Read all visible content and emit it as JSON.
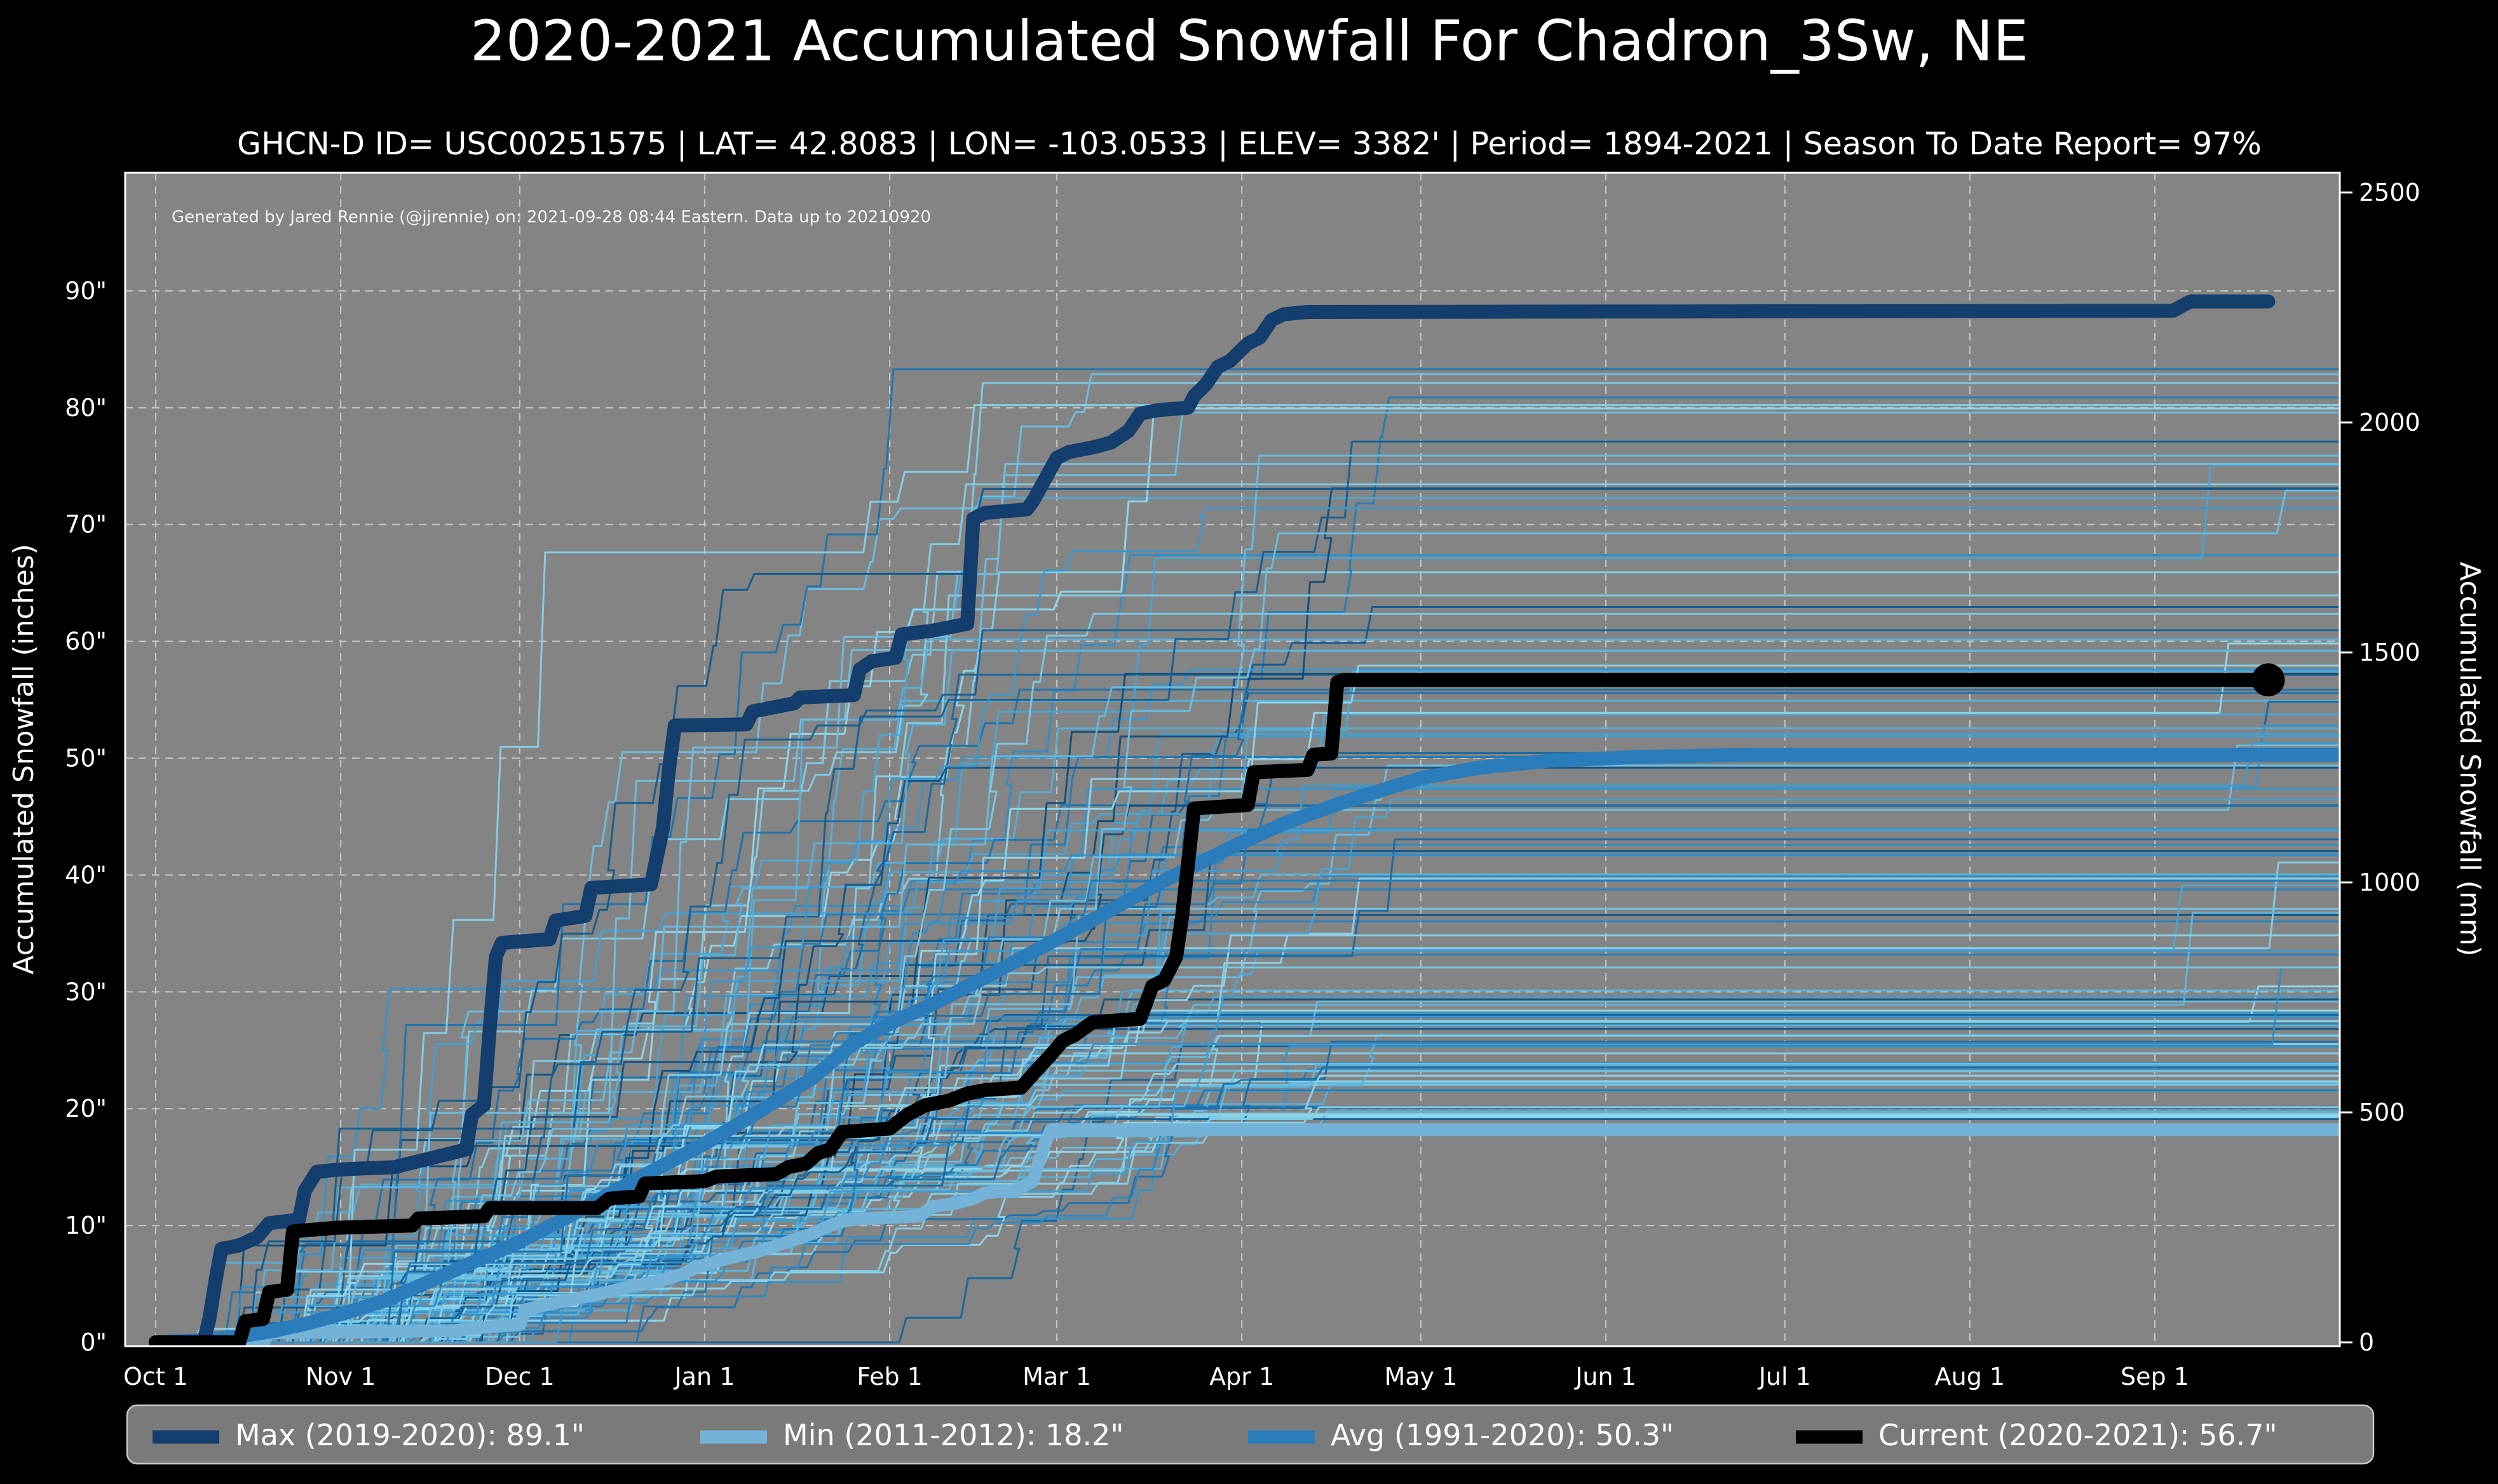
{
  "chart_data": {
    "type": "line",
    "title": "2020-2021 Accumulated Snowfall For Chadron_3Sw, NE",
    "subtitle": "GHCN-D ID= USC00251575 | LAT= 42.8083 | LON= -103.0533 | ELEV= 3382' | Period= 1894-2021 | Season To Date Report= 97%",
    "annotation": "Generated by Jared Rennie (@jjrennie) on: 2021-09-28 08:44 Eastern. Data up to 20210920",
    "plot_bg": "#848484",
    "fig_bg": "#000000",
    "text_color": "#ffffff",
    "grid": {
      "on": true,
      "color": "#cdcdcd",
      "dash": [
        12,
        9
      ],
      "width": 2.2,
      "opacity": 0.85
    },
    "spine_color": "#ffffff",
    "x_axis": {
      "ticks": [
        {
          "label": "Oct 1",
          "day": 0
        },
        {
          "label": "Nov 1",
          "day": 31
        },
        {
          "label": "Dec 1",
          "day": 61
        },
        {
          "label": "Jan 1",
          "day": 92
        },
        {
          "label": "Feb 1",
          "day": 123
        },
        {
          "label": "Mar 1",
          "day": 151
        },
        {
          "label": "Apr 1",
          "day": 182
        },
        {
          "label": "May 1",
          "day": 212
        },
        {
          "label": "Jun 1",
          "day": 243
        },
        {
          "label": "Jul 1",
          "day": 273
        },
        {
          "label": "Aug 1",
          "day": 304
        },
        {
          "label": "Sep 1",
          "day": 335
        }
      ],
      "lim_days": [
        -5.1,
        366
      ]
    },
    "y_axis_inches": {
      "label": "Accumulated Snowfall (inches)",
      "tick_values": [
        0,
        10,
        20,
        30,
        40,
        50,
        60,
        70,
        80,
        90
      ],
      "tick_suffix": "\"",
      "lim": [
        -0.33,
        100.1
      ]
    },
    "y_axis_mm": {
      "label": "Accumulated Snowfall (mm)",
      "tick_values": [
        0,
        500,
        1000,
        1500,
        2000,
        2500
      ],
      "mm_per_inch": 25.4
    },
    "legend": {
      "bg": "#7a7a7a",
      "border": "#c8c8c8",
      "entries": [
        {
          "key": "max",
          "label": "Max (2019-2020):  89.1\"",
          "color": "#143e6d"
        },
        {
          "key": "min",
          "label": "Min (2011-2012):  18.2\"",
          "color": "#74b2d8"
        },
        {
          "key": "avg",
          "label": "Avg (1991-2020):  50.3\"",
          "color": "#2a7cbb"
        },
        {
          "key": "current",
          "label": "Current (2020-2021):  56.7\"",
          "color": "#000000"
        }
      ]
    },
    "series": [
      {
        "key": "min",
        "name": "Min (2011-2012)",
        "final_label": "18.2\"",
        "color": "#74b2d8",
        "width": 20,
        "points": [
          [
            0,
            0
          ],
          [
            18,
            0
          ],
          [
            19,
            0.8
          ],
          [
            50,
            1
          ],
          [
            55,
            1.3
          ],
          [
            61,
            1.5
          ],
          [
            62,
            2.8
          ],
          [
            67,
            3.4
          ],
          [
            74,
            4.1
          ],
          [
            79,
            4.7
          ],
          [
            84,
            5.2
          ],
          [
            88,
            5.8
          ],
          [
            91,
            6.5
          ],
          [
            96,
            7.2
          ],
          [
            101,
            7.8
          ],
          [
            106,
            8.6
          ],
          [
            110,
            9.3
          ],
          [
            113,
            10
          ],
          [
            116,
            10.5
          ],
          [
            128,
            10.8
          ],
          [
            130,
            11.6
          ],
          [
            134,
            11.9
          ],
          [
            137,
            12.3
          ],
          [
            139,
            12.8
          ],
          [
            144,
            13
          ],
          [
            147,
            13.8
          ],
          [
            148,
            15.5
          ],
          [
            149,
            17
          ],
          [
            150,
            18.2
          ],
          [
            366,
            18.2
          ]
        ]
      },
      {
        "key": "avg",
        "name": "Avg (1991-2020)",
        "final_label": "50.3\"",
        "color": "#2a7cbb",
        "width": 22,
        "points": [
          [
            0,
            0
          ],
          [
            8,
            0.2
          ],
          [
            14,
            0.5
          ],
          [
            20,
            1
          ],
          [
            26,
            1.7
          ],
          [
            31,
            2.4
          ],
          [
            38,
            3.5
          ],
          [
            45,
            5
          ],
          [
            52,
            6.6
          ],
          [
            61,
            8.6
          ],
          [
            70,
            11
          ],
          [
            80,
            13.8
          ],
          [
            92,
            17
          ],
          [
            100,
            19.4
          ],
          [
            110,
            22.6
          ],
          [
            117,
            25.6
          ],
          [
            123,
            27.3
          ],
          [
            130,
            28.9
          ],
          [
            140,
            31.5
          ],
          [
            151,
            34.5
          ],
          [
            160,
            37
          ],
          [
            170,
            39.8
          ],
          [
            182,
            42.8
          ],
          [
            190,
            44.6
          ],
          [
            200,
            46.4
          ],
          [
            212,
            48.3
          ],
          [
            222,
            49.2
          ],
          [
            234,
            49.8
          ],
          [
            248,
            50.1
          ],
          [
            268,
            50.3
          ],
          [
            366,
            50.3
          ]
        ]
      },
      {
        "key": "max",
        "name": "Max (2019-2020)",
        "final_label": "89.1\"",
        "color": "#143e6d",
        "width": 22,
        "points": [
          [
            0,
            0
          ],
          [
            8,
            0
          ],
          [
            9,
            2
          ],
          [
            10,
            5.2
          ],
          [
            11,
            8
          ],
          [
            14,
            8.3
          ],
          [
            17,
            9
          ],
          [
            19,
            10.2
          ],
          [
            24,
            10.5
          ],
          [
            25,
            13
          ],
          [
            27,
            14.6
          ],
          [
            31,
            14.8
          ],
          [
            40,
            15
          ],
          [
            44,
            15.5
          ],
          [
            48,
            16
          ],
          [
            52,
            16.5
          ],
          [
            53,
            19.5
          ],
          [
            55,
            20.3
          ],
          [
            56,
            27
          ],
          [
            57,
            33
          ],
          [
            58,
            34.2
          ],
          [
            66,
            34.5
          ],
          [
            67,
            36.1
          ],
          [
            72,
            36.5
          ],
          [
            73,
            38.9
          ],
          [
            83,
            39.2
          ],
          [
            85,
            44
          ],
          [
            86,
            49
          ],
          [
            87,
            52.8
          ],
          [
            99,
            52.9
          ],
          [
            100,
            54
          ],
          [
            104,
            54.4
          ],
          [
            107,
            54.7
          ],
          [
            108,
            55.2
          ],
          [
            117,
            55.4
          ],
          [
            118,
            57.6
          ],
          [
            120,
            58.3
          ],
          [
            124,
            58.6
          ],
          [
            125,
            60.6
          ],
          [
            130,
            60.9
          ],
          [
            136,
            61.5
          ],
          [
            137,
            70.5
          ],
          [
            139,
            71
          ],
          [
            146,
            71.3
          ],
          [
            147,
            72
          ],
          [
            151,
            75.7
          ],
          [
            153,
            76.2
          ],
          [
            157,
            76.6
          ],
          [
            160,
            77
          ],
          [
            163,
            78
          ],
          [
            165,
            79.5
          ],
          [
            168,
            79.8
          ],
          [
            173,
            80
          ],
          [
            174,
            81
          ],
          [
            176,
            82
          ],
          [
            178,
            83.5
          ],
          [
            180,
            84
          ],
          [
            183,
            85.5
          ],
          [
            185,
            86
          ],
          [
            187,
            87.5
          ],
          [
            189,
            88
          ],
          [
            193,
            88.2
          ],
          [
            338,
            88.3
          ],
          [
            341,
            89.1
          ],
          [
            354,
            89.1
          ]
        ]
      },
      {
        "key": "current",
        "name": "Current (2020-2021)",
        "final_label": "56.7\"",
        "color": "#000000",
        "width": 22,
        "endpoint_dot": true,
        "dot_radius": 26,
        "points": [
          [
            0,
            0
          ],
          [
            14,
            0
          ],
          [
            15,
            1.8
          ],
          [
            18,
            2
          ],
          [
            19,
            4.3
          ],
          [
            22,
            4.5
          ],
          [
            23,
            9.5
          ],
          [
            30,
            9.8
          ],
          [
            43,
            10
          ],
          [
            44,
            10.6
          ],
          [
            55,
            10.8
          ],
          [
            56,
            11.5
          ],
          [
            74,
            11.5
          ],
          [
            76,
            12.3
          ],
          [
            81,
            12.5
          ],
          [
            82,
            13.6
          ],
          [
            92,
            13.8
          ],
          [
            94,
            14.2
          ],
          [
            104,
            14.4
          ],
          [
            106,
            15
          ],
          [
            109,
            15.3
          ],
          [
            111,
            16.2
          ],
          [
            113,
            16.5
          ],
          [
            115,
            18
          ],
          [
            123,
            18.3
          ],
          [
            126,
            19.5
          ],
          [
            129,
            20.3
          ],
          [
            133,
            20.7
          ],
          [
            136,
            21.3
          ],
          [
            139,
            21.6
          ],
          [
            145,
            21.8
          ],
          [
            148,
            23.5
          ],
          [
            150,
            24.6
          ],
          [
            152,
            25.8
          ],
          [
            154,
            26.3
          ],
          [
            157,
            27.4
          ],
          [
            165,
            27.7
          ],
          [
            167,
            30.5
          ],
          [
            169,
            31
          ],
          [
            171,
            33
          ],
          [
            172,
            36.5
          ],
          [
            173,
            41
          ],
          [
            174,
            45.7
          ],
          [
            183,
            46
          ],
          [
            184,
            48.8
          ],
          [
            193,
            49
          ],
          [
            194,
            50.3
          ],
          [
            197,
            50.4
          ],
          [
            198,
            56.5
          ],
          [
            199,
            56.7
          ],
          [
            354,
            56.7
          ]
        ]
      }
    ],
    "background_ensemble": {
      "description": "Thin lines: individual historical seasons 1894-2021 (~127 seasons), season totals between 18.2 and 89.1 inches",
      "count": 120,
      "seed": 7,
      "stroke_width": 3,
      "opacity": 0.95,
      "final_range_inches": [
        18.5,
        84
      ],
      "palette": [
        "#0d4a78",
        "#1668a0",
        "#2585c4",
        "#3f9fd4",
        "#5fb7de",
        "#7fcce6",
        "#93d8ea"
      ]
    }
  }
}
